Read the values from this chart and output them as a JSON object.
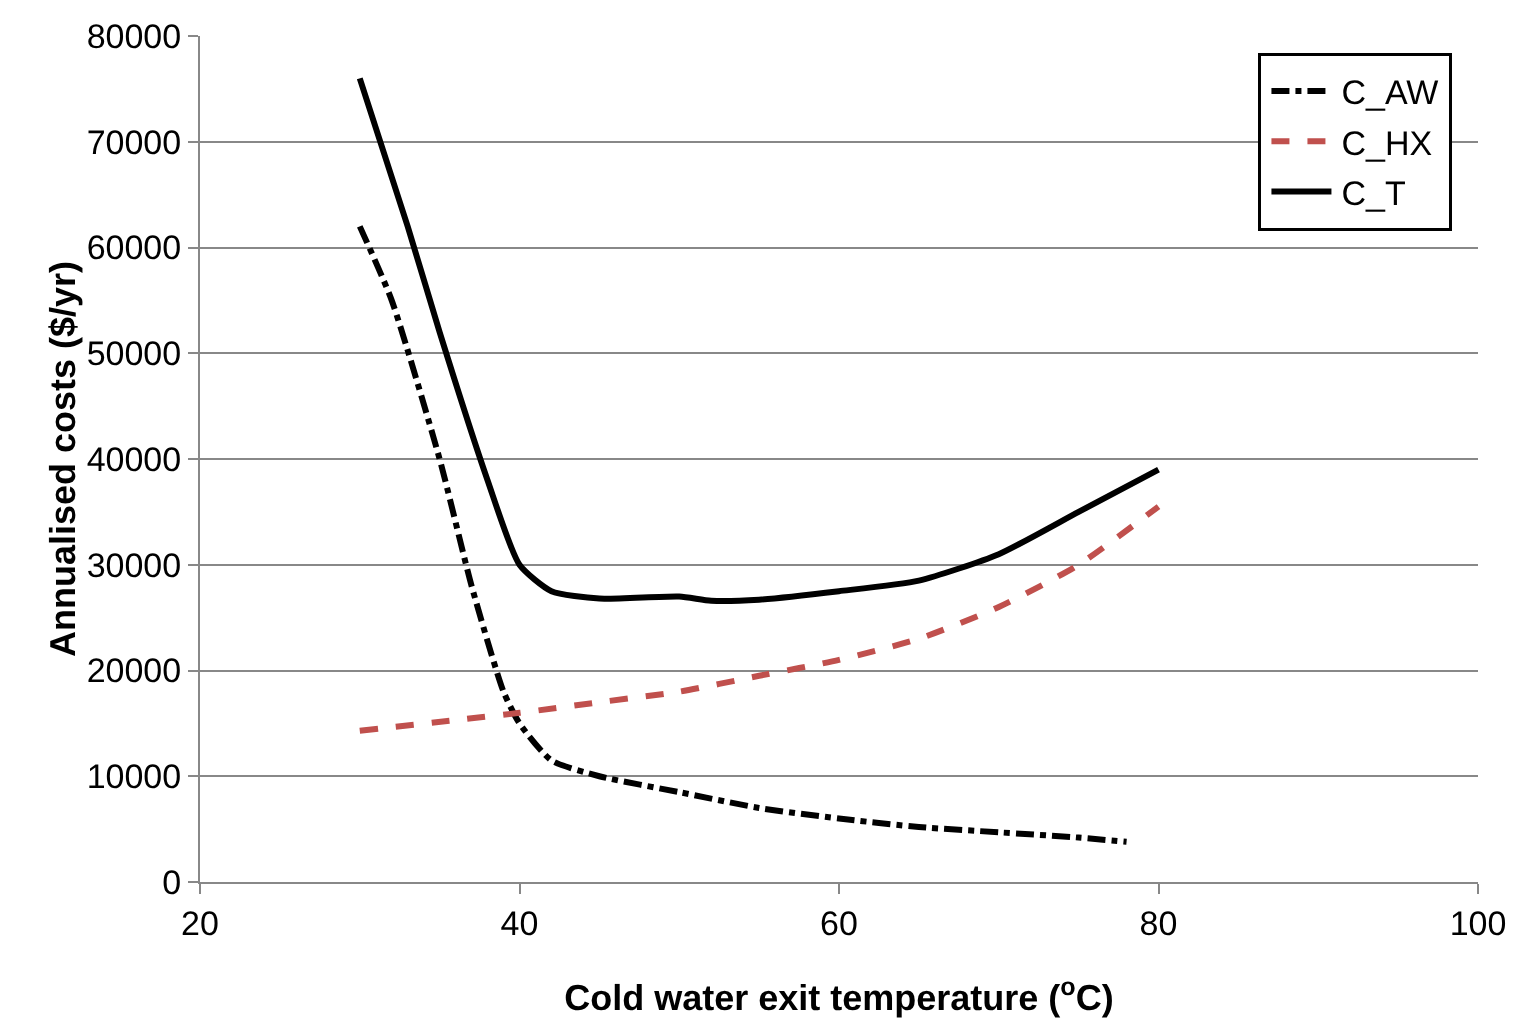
{
  "chart_data": {
    "type": "line",
    "xlabel": "Cold water exit temperature ($^{o}$C)",
    "ylabel": "Annualised costs ($/yr)",
    "xlim": [
      20,
      100
    ],
    "xticks": [
      20,
      40,
      60,
      80,
      100
    ],
    "ylim": [
      0,
      80000
    ],
    "yticks": [
      0,
      10000,
      20000,
      30000,
      40000,
      50000,
      60000,
      70000,
      80000
    ],
    "grid": "y",
    "legend": "top right",
    "marker": "none",
    "series": [
      {
        "name": "C_AW",
        "color": "#000000",
        "line_style": "dashdot",
        "x": [
          30,
          32,
          35,
          37,
          39,
          40,
          42,
          45,
          50,
          55,
          60,
          65,
          70,
          75,
          78
        ],
        "values": [
          62000,
          55000,
          40000,
          28000,
          18000,
          15000,
          11500,
          10000,
          8500,
          7000,
          6000,
          5200,
          4700,
          4200,
          3800
        ]
      },
      {
        "name": "C_HX",
        "color": "#c0504d",
        "line_style": "dashed",
        "x": [
          30,
          40,
          45,
          50,
          55,
          60,
          65,
          70,
          75,
          80
        ],
        "values": [
          14300,
          16000,
          17000,
          18000,
          19500,
          21000,
          23000,
          26000,
          30000,
          35500
        ]
      },
      {
        "name": "C_T",
        "color": "#000000",
        "line_style": "solid",
        "x": [
          30,
          33,
          35,
          38,
          40,
          42,
          45,
          50,
          52,
          55,
          60,
          65,
          70,
          75,
          80
        ],
        "values": [
          76000,
          62000,
          52000,
          38000,
          30000,
          27500,
          26800,
          27000,
          26600,
          26700,
          27500,
          28500,
          31000,
          35000,
          39000
        ]
      }
    ]
  }
}
